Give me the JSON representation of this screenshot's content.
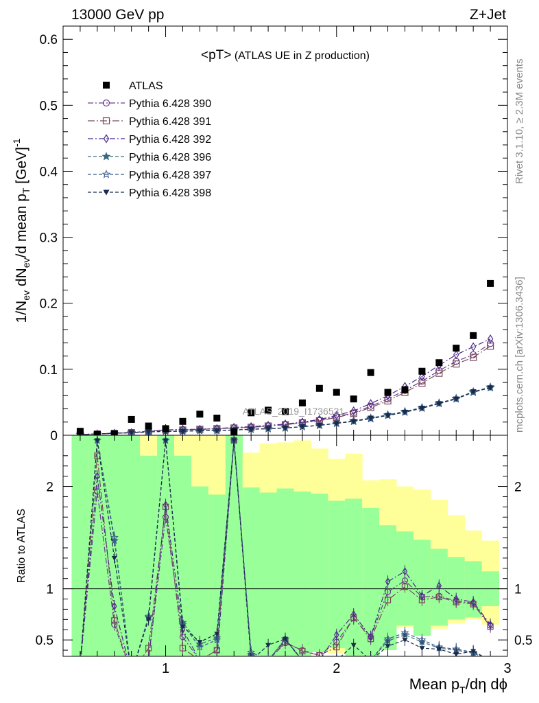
{
  "header": {
    "left": "13000 GeV pp",
    "right": "Z+Jet"
  },
  "side_labels": {
    "rivet": "Rivet 3.1.10, ≥ 2.3M events",
    "mcplots": "mcplots.cern.ch [arXiv:1306.3436]"
  },
  "watermark": "ATLAS_2019_I1736531",
  "chart_data": {
    "type": "scatter",
    "title": "<pT> (ATLAS UE in Z production)",
    "title_parts": {
      "main": "<pT>",
      "sub": " (ATLAS UE in Z production)"
    },
    "xlabel": "Mean p_T/dη dϕ",
    "ylabel": "1/N_ev dN_ev/d mean p_T [GeV]^-1",
    "ratio_ylabel": "Ratio to ATLAS",
    "xlim": [
      0.4,
      3.0
    ],
    "ylim": [
      0,
      0.62
    ],
    "ratio_ylim": [
      0.34,
      2.5
    ],
    "x_ticks": [
      1,
      2,
      3
    ],
    "y_ticks": [
      0,
      0.1,
      0.2,
      0.3,
      0.4,
      0.5,
      0.6
    ],
    "ratio_ticks": [
      0.5,
      1,
      2
    ],
    "legend_position": "top-left",
    "x": [
      0.5,
      0.6,
      0.7,
      0.8,
      0.9,
      1.0,
      1.1,
      1.2,
      1.3,
      1.4,
      1.5,
      1.6,
      1.7,
      1.8,
      1.9,
      2.0,
      2.1,
      2.2,
      2.3,
      2.4,
      2.5,
      2.6,
      2.7,
      2.8,
      2.9
    ],
    "data": {
      "name": "ATLAS",
      "values": [
        0.006,
        0.001,
        0.002,
        0.024,
        0.014,
        0.01,
        0.021,
        0.032,
        0.026,
        0.005,
        0.034,
        0.038,
        0.036,
        0.049,
        0.071,
        0.065,
        0.055,
        0.095,
        0.065,
        0.069,
        0.097,
        0.11,
        0.132,
        0.151,
        0.23
      ]
    },
    "band_edges": [
      0.45,
      0.55,
      0.65,
      0.75,
      0.85,
      0.95,
      1.05,
      1.15,
      1.25,
      1.35,
      1.45,
      1.55,
      1.65,
      1.75,
      1.85,
      1.95,
      2.05,
      2.15,
      2.25,
      2.35,
      2.45,
      2.55,
      2.65,
      2.75,
      2.85,
      2.95
    ],
    "band_stat": [
      [
        0.3,
        2.6
      ],
      [
        0.3,
        2.6
      ],
      [
        0.3,
        2.6
      ],
      [
        0.3,
        2.6
      ],
      [
        0.3,
        2.6
      ],
      [
        0.3,
        2.6
      ],
      [
        0.3,
        2.6
      ],
      [
        0.3,
        2.6
      ],
      [
        0.3,
        2.6
      ],
      [
        0.3,
        2.6
      ],
      [
        0.3,
        2.6
      ],
      [
        0.3,
        2.6
      ],
      [
        0.3,
        2.6
      ],
      [
        0.3,
        2.6
      ],
      [
        0.3,
        2.6
      ],
      [
        0.3,
        2.6
      ],
      [
        0.3,
        2.6
      ],
      [
        0.3,
        2.6
      ],
      [
        0.3,
        2.6
      ],
      [
        0.3,
        2.6
      ],
      [
        0.3,
        2.6
      ],
      [
        0.3,
        2.6
      ],
      [
        0.3,
        2.6
      ],
      [
        0.3,
        2.6
      ],
      [
        0.3,
        2.6
      ]
    ],
    "band_total": [
      [
        0.3,
        2.6
      ],
      [
        0.3,
        2.6
      ],
      [
        0.3,
        2.6
      ],
      [
        0.3,
        2.6
      ],
      [
        0.3,
        2.6
      ],
      [
        0.3,
        2.6
      ],
      [
        0.3,
        2.6
      ],
      [
        0.3,
        2.6
      ],
      [
        0.3,
        2.6
      ],
      [
        0.3,
        2.6
      ],
      [
        0.3,
        2.6
      ],
      [
        0.3,
        2.6
      ],
      [
        0.3,
        2.6
      ],
      [
        0.3,
        2.6
      ],
      [
        0.3,
        2.6
      ],
      [
        0.3,
        2.6
      ],
      [
        0.3,
        2.6
      ],
      [
        0.3,
        2.6
      ],
      [
        0.3,
        2.6
      ],
      [
        0.3,
        2.6
      ],
      [
        0.3,
        2.6
      ],
      [
        0.3,
        2.6
      ],
      [
        0.3,
        2.6
      ],
      [
        0.3,
        2.6
      ],
      [
        0.3,
        2.6
      ]
    ],
    "band_green": [
      [
        0.3,
        2.6
      ],
      [
        0.3,
        2.6
      ],
      [
        0.3,
        2.6
      ],
      [
        0.3,
        2.6
      ],
      [
        0.3,
        2.6
      ],
      [
        0.3,
        2.6
      ],
      [
        0.3,
        2.6
      ],
      [
        0.3,
        2.6
      ],
      [
        0.3,
        2.6
      ],
      [
        0.3,
        2.6
      ],
      [
        0.3,
        2.6
      ],
      [
        0.3,
        2.6
      ],
      [
        0.3,
        2.6
      ],
      [
        0.3,
        2.6
      ],
      [
        0.3,
        2.6
      ],
      [
        0.3,
        2.6
      ],
      [
        0.3,
        2.6
      ],
      [
        0.3,
        2.6
      ],
      [
        0.3,
        2.6
      ],
      [
        0.3,
        2.6
      ],
      [
        0.3,
        2.6
      ],
      [
        0.3,
        2.6
      ],
      [
        0.3,
        2.6
      ],
      [
        0.3,
        2.6
      ],
      [
        0.3,
        2.6
      ]
    ],
    "bands": {
      "yellow": [
        [
          0.3,
          2.6
        ],
        [
          0.3,
          2.6
        ],
        [
          0.3,
          2.6
        ],
        [
          0.3,
          2.6
        ],
        [
          0.3,
          2.6
        ],
        [
          0.3,
          2.6
        ],
        [
          0.3,
          2.6
        ],
        [
          0.3,
          2.6
        ],
        [
          0.3,
          2.6
        ],
        [
          0.3,
          2.6
        ],
        [
          0.3,
          2.33
        ],
        [
          0.3,
          2.42
        ],
        [
          0.3,
          2.43
        ],
        [
          0.3,
          2.45
        ],
        [
          0.42,
          2.37
        ],
        [
          0.37,
          2.27
        ],
        [
          0.34,
          2.32
        ],
        [
          0.48,
          2.06
        ],
        [
          0.58,
          2.07
        ],
        [
          0.62,
          2.0
        ],
        [
          0.61,
          1.97
        ],
        [
          0.61,
          1.87
        ],
        [
          0.66,
          1.72
        ],
        [
          0.7,
          1.57
        ],
        [
          0.65,
          1.47
        ]
      ],
      "green": [
        [
          0.3,
          2.6
        ],
        [
          0.3,
          2.6
        ],
        [
          0.3,
          2.6
        ],
        [
          0.3,
          2.6
        ],
        [
          0.3,
          2.6
        ],
        [
          0.3,
          2.6
        ],
        [
          0.3,
          2.6
        ],
        [
          0.3,
          2.6
        ],
        [
          0.3,
          2.6
        ],
        [
          0.3,
          2.6
        ],
        [
          0.3,
          2.6
        ],
        [
          0.3,
          2.6
        ],
        [
          0.3,
          2.6
        ],
        [
          0.3,
          2.6
        ],
        [
          0.3,
          2.6
        ],
        [
          0.3,
          2.6
        ],
        [
          0.3,
          2.6
        ],
        [
          0.3,
          2.6
        ],
        [
          0.3,
          2.6
        ],
        [
          0.3,
          2.6
        ],
        [
          0.3,
          2.6
        ],
        [
          0.3,
          2.6
        ],
        [
          0.3,
          2.6
        ],
        [
          0.3,
          2.6
        ],
        [
          0.3,
          2.6
        ]
      ]
    },
    "bands_actual": {
      "yellow": [
        [
          0.3,
          2.6
        ],
        [
          0.3,
          2.6
        ],
        [
          0.3,
          2.6
        ],
        [
          0.3,
          2.6
        ],
        [
          0.3,
          2.5
        ],
        [
          0.3,
          2.6
        ],
        [
          0.3,
          2.6
        ],
        [
          0.3,
          2.6
        ],
        [
          0.3,
          2.6
        ],
        [
          0.3,
          2.6
        ],
        [
          0.3,
          2.33
        ],
        [
          0.3,
          2.42
        ],
        [
          0.3,
          2.43
        ],
        [
          0.3,
          2.45
        ],
        [
          0.42,
          2.37
        ],
        [
          0.37,
          2.27
        ],
        [
          0.34,
          2.32
        ],
        [
          0.48,
          2.06
        ],
        [
          0.58,
          2.07
        ],
        [
          0.62,
          2.0
        ],
        [
          0.61,
          1.97
        ],
        [
          0.61,
          1.87
        ],
        [
          0.66,
          1.72
        ],
        [
          0.7,
          1.57
        ],
        [
          0.65,
          1.47
        ]
      ],
      "green": [
        [
          0.3,
          2.6
        ],
        [
          0.3,
          2.6
        ],
        [
          0.3,
          2.6
        ],
        [
          0.3,
          2.6
        ],
        [
          0.3,
          2.3
        ],
        [
          0.3,
          2.6
        ],
        [
          0.3,
          2.3
        ],
        [
          0.3,
          2.0
        ],
        [
          0.3,
          1.92
        ],
        [
          0.3,
          2.6
        ],
        [
          0.3,
          1.99
        ],
        [
          0.3,
          1.94
        ],
        [
          0.3,
          1.98
        ],
        [
          0.3,
          1.95
        ],
        [
          0.38,
          1.93
        ],
        [
          0.42,
          1.86
        ],
        [
          0.3,
          1.88
        ],
        [
          0.34,
          1.79
        ],
        [
          0.4,
          1.62
        ],
        [
          0.64,
          1.56
        ],
        [
          0.54,
          1.48
        ],
        [
          0.64,
          1.39
        ],
        [
          0.7,
          1.31
        ],
        [
          0.72,
          1.27
        ],
        [
          0.83,
          1.17
        ]
      ]
    },
    "series": [
      {
        "name": "Pythia 6.428 390",
        "marker": "circle-open",
        "color": "#6a3d8a",
        "dash": "8,3,2,3",
        "values": [
          0.001,
          0.002,
          0.003,
          0.004,
          0.006,
          0.008,
          0.008,
          0.009,
          0.01,
          0.011,
          0.012,
          0.014,
          0.016,
          0.019,
          0.023,
          0.028,
          0.034,
          0.044,
          0.055,
          0.068,
          0.082,
          0.098,
          0.112,
          0.122,
          0.139
        ],
        "ratio": [
          0.25,
          1.95,
          0.65,
          0.17,
          0.3,
          1.7,
          0.53,
          0.3,
          0.4,
          2.45,
          0.34,
          0.3,
          0.47,
          0.4,
          0.35,
          0.48,
          0.71,
          0.53,
          0.97,
          1.08,
          0.92,
          0.93,
          0.88,
          0.86,
          0.64
        ]
      },
      {
        "name": "Pythia 6.428 391",
        "marker": "square-open",
        "color": "#7a4a5a",
        "dash": "10,3,2,3",
        "values": [
          0.001,
          0.002,
          0.003,
          0.004,
          0.006,
          0.008,
          0.008,
          0.009,
          0.01,
          0.011,
          0.012,
          0.014,
          0.016,
          0.019,
          0.022,
          0.027,
          0.033,
          0.042,
          0.052,
          0.065,
          0.079,
          0.094,
          0.108,
          0.118,
          0.135
        ],
        "ratio": [
          0.25,
          2.3,
          0.69,
          0.17,
          0.42,
          1.8,
          0.42,
          0.3,
          0.4,
          2.45,
          0.34,
          0.3,
          0.48,
          0.39,
          0.35,
          0.43,
          0.72,
          0.51,
          0.89,
          1.02,
          0.89,
          0.92,
          0.87,
          0.85,
          0.63
        ]
      },
      {
        "name": "Pythia 6.428 392",
        "marker": "diamond-open",
        "color": "#4b2a8a",
        "dash": "8,3,2,3",
        "values": [
          0.001,
          0.002,
          0.003,
          0.004,
          0.006,
          0.008,
          0.009,
          0.009,
          0.01,
          0.012,
          0.013,
          0.015,
          0.017,
          0.02,
          0.024,
          0.03,
          0.037,
          0.048,
          0.06,
          0.074,
          0.089,
          0.106,
          0.122,
          0.134,
          0.146
        ],
        "ratio": [
          0.25,
          2.1,
          0.83,
          0.17,
          0.3,
          1.82,
          0.6,
          0.3,
          0.3,
          2.45,
          0.34,
          0.3,
          0.5,
          0.3,
          0.3,
          0.55,
          0.75,
          0.53,
          1.07,
          1.17,
          0.93,
          1.03,
          0.9,
          0.87,
          0.65
        ]
      },
      {
        "name": "Pythia 6.428 396",
        "marker": "star-filled",
        "color": "#3a6a7a",
        "dash": "5,3",
        "values": [
          0.001,
          0.002,
          0.003,
          0.004,
          0.005,
          0.006,
          0.006,
          0.007,
          0.007,
          0.008,
          0.009,
          0.01,
          0.011,
          0.013,
          0.015,
          0.018,
          0.021,
          0.025,
          0.03,
          0.035,
          0.041,
          0.048,
          0.055,
          0.065,
          0.072
        ],
        "ratio": [
          0.25,
          2.45,
          1.47,
          0.17,
          0.72,
          2.45,
          0.67,
          0.46,
          0.52,
          2.45,
          0.36,
          0.3,
          0.51,
          0.3,
          0.3,
          0.3,
          0.3,
          0.3,
          0.49,
          0.55,
          0.48,
          0.42,
          0.4,
          0.37,
          0.3
        ]
      },
      {
        "name": "Pythia 6.428 397",
        "marker": "star-open",
        "color": "#3a5a8a",
        "dash": "5,3",
        "values": [
          0.001,
          0.002,
          0.003,
          0.004,
          0.005,
          0.006,
          0.006,
          0.007,
          0.007,
          0.008,
          0.009,
          0.01,
          0.011,
          0.013,
          0.015,
          0.018,
          0.022,
          0.026,
          0.031,
          0.036,
          0.042,
          0.049,
          0.056,
          0.066,
          0.073
        ],
        "ratio": [
          0.25,
          2.45,
          1.5,
          0.17,
          0.73,
          2.45,
          0.65,
          0.43,
          0.5,
          2.45,
          0.38,
          0.3,
          0.51,
          0.3,
          0.3,
          0.3,
          0.3,
          0.3,
          0.51,
          0.57,
          0.5,
          0.43,
          0.41,
          0.38,
          0.3
        ]
      },
      {
        "name": "Pythia 6.428 398",
        "marker": "triangle-down-filled",
        "color": "#1a2a4a",
        "dash": "5,3",
        "values": [
          0.001,
          0.002,
          0.003,
          0.004,
          0.005,
          0.006,
          0.006,
          0.007,
          0.007,
          0.008,
          0.009,
          0.01,
          0.011,
          0.013,
          0.015,
          0.018,
          0.021,
          0.026,
          0.03,
          0.035,
          0.041,
          0.048,
          0.055,
          0.066,
          0.072
        ],
        "ratio": [
          0.25,
          2.45,
          1.3,
          0.17,
          0.7,
          2.45,
          0.63,
          0.48,
          0.56,
          2.45,
          0.3,
          0.45,
          0.51,
          0.3,
          0.3,
          0.3,
          0.45,
          0.3,
          0.44,
          0.5,
          0.42,
          0.41,
          0.36,
          0.39,
          0.3
        ]
      }
    ]
  }
}
